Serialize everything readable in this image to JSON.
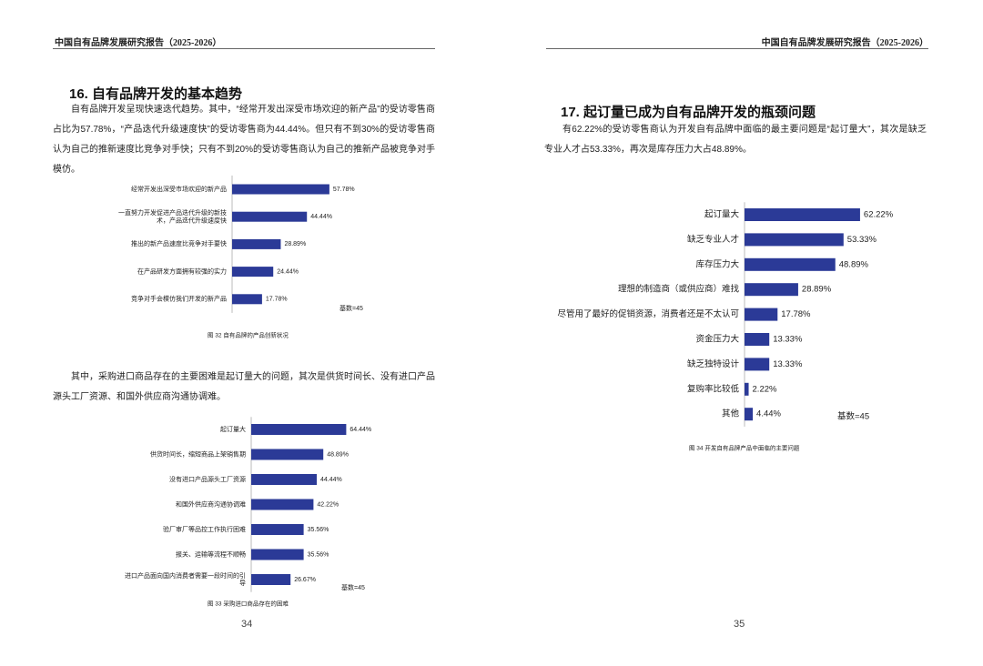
{
  "header": {
    "left": "中国自有品牌发展研究报告（2025-2026）",
    "right": "中国自有品牌发展研究报告（2025-2026）"
  },
  "left_page": {
    "heading": "16. 自有品牌开发的基本趋势",
    "paragraph_1": "自有品牌开发呈现快速迭代趋势。其中，“经常开发出深受市场欢迎的新产品”的受访零售商占比为57.78%，“产品迭代升级速度快”的受访零售商为44.44%。但只有不到30%的受访零售商认为自己的推新速度比竞争对手快；只有不到20%的受访零售商认为自己的推新产品被竞争对手模仿。",
    "paragraph_2": "其中，采购进口商品存在的主要困难是起订量大的问题，其次是供货时间长、没有进口产品源头工厂资源、和国外供应商沟通协调难。",
    "page_number": "34"
  },
  "right_page": {
    "heading": "17. 起订量已成为自有品牌开发的瓶颈问题",
    "paragraph_1": "有62.22%的受访零售商认为开发自有品牌中面临的最主要问题是“起订量大”，其次是缺乏专业人才占53.33%，再次是库存压力大占48.89%。",
    "page_number": "35"
  },
  "chart_data": [
    {
      "type": "hbar",
      "caption": "图 32 自有品牌的产品创新状况",
      "annotation": "基数=45",
      "color": "#2b3a97",
      "categories": [
        "经常开发出深受市场欢迎的新产品",
        "一直努力开发促进产品迭代升级的新技术，产品迭代升级速度快",
        "推出的新产品速度比竞争对手要快",
        "在产品研发方面拥有较强的实力",
        "竞争对手会模仿我们开发的新产品"
      ],
      "values": [
        57.78,
        44.44,
        28.89,
        24.44,
        17.78
      ],
      "value_labels": [
        "57.78%",
        "44.44%",
        "28.89%",
        "24.44%",
        "17.78%"
      ]
    },
    {
      "type": "hbar",
      "caption": "图 33 采购进口商品存在的困难",
      "annotation": "基数=45",
      "color": "#2b3a97",
      "categories": [
        "起订量大",
        "供货时间长，缩短商品上架销售期",
        "没有进口产品源头工厂资源",
        "和国外供应商沟通协调难",
        "验厂审厂等品控工作执行困难",
        "报关、运输等流程不顺畅",
        "进口产品面向国内消费者需要一段时间的引导"
      ],
      "values": [
        64.44,
        48.89,
        44.44,
        42.22,
        35.56,
        35.56,
        26.67
      ],
      "value_labels": [
        "64.44%",
        "48.89%",
        "44.44%",
        "42.22%",
        "35.56%",
        "35.56%",
        "26.67%"
      ]
    },
    {
      "type": "hbar",
      "caption": "图 34 开发自有品牌产品中面临的主要问题",
      "annotation": "基数=45",
      "color": "#2b3a97",
      "categories": [
        "起订量大",
        "缺乏专业人才",
        "库存压力大",
        "理想的制造商（或供应商）难找",
        "尽管用了最好的促销资源，消费者还是不太认可",
        "资金压力大",
        "缺乏独特设计",
        "复购率比较低",
        "其他"
      ],
      "values": [
        62.22,
        53.33,
        48.89,
        28.89,
        17.78,
        13.33,
        13.33,
        2.22,
        4.44
      ],
      "value_labels": [
        "62.22%",
        "53.33%",
        "48.89%",
        "28.89%",
        "17.78%",
        "13.33%",
        "13.33%",
        "2.22%",
        "4.44%"
      ]
    }
  ]
}
